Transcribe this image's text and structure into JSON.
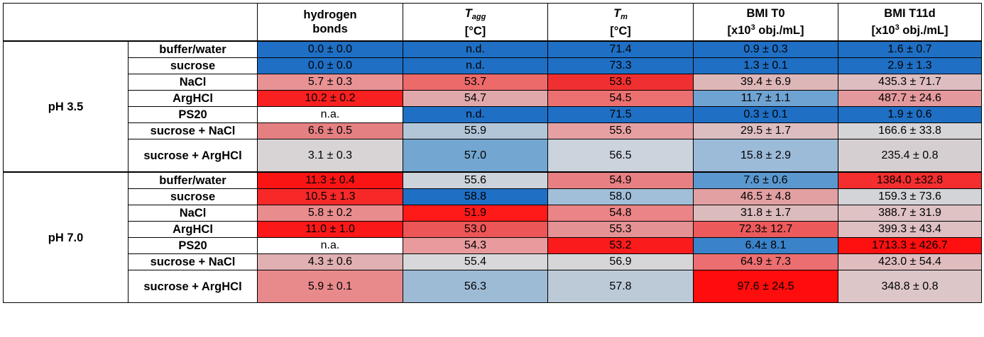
{
  "header": {
    "hb_line1": "hydrogen",
    "hb_line2": "bonds",
    "tagg_main": "T",
    "tagg_sub": "agg",
    "tagg_unit": "[°C]",
    "tm_main": "T",
    "tm_sub": "m",
    "tm_unit": "[°C]",
    "t0_line1": "BMI T0",
    "t0_pre": "[x10",
    "t0_sup": "3",
    "t0_post": " obj./mL]",
    "t11_line1": "BMI T11d",
    "t11_pre": "[x10",
    "t11_sup": "3",
    "t11_post": " obj./mL]"
  },
  "groups": [
    {
      "label": "pH 3.5",
      "rows": [
        {
          "solution": "buffer/water",
          "cells": [
            {
              "text": "0.0 ± 0.0",
              "bg": "#1f6fc4"
            },
            {
              "text": "n.d.",
              "bg": "#1f6fc4"
            },
            {
              "text": "71.4",
              "bg": "#1f6fc4"
            },
            {
              "text": "0.9 ± 0.3",
              "bg": "#1f6fc4"
            },
            {
              "text": "1.6 ± 0.7",
              "bg": "#1f6fc4"
            }
          ]
        },
        {
          "solution": "sucrose",
          "cells": [
            {
              "text": "0.0 ± 0.0",
              "bg": "#1f6fc4"
            },
            {
              "text": "n.d.",
              "bg": "#1f6fc4"
            },
            {
              "text": "73.3",
              "bg": "#1f6fc4"
            },
            {
              "text": "1.3 ± 0.1",
              "bg": "#1f6fc4"
            },
            {
              "text": "2.9 ± 1.3",
              "bg": "#1f6fc4"
            }
          ]
        },
        {
          "solution": "NaCl",
          "cells": [
            {
              "text": "5.7 ± 0.3",
              "bg": "#e89294"
            },
            {
              "text": "53.7",
              "bg": "#ec6a6a"
            },
            {
              "text": "53.6",
              "bg": "#f03030"
            },
            {
              "text": "39.4 ± 6.9",
              "bg": "#ddb6b8"
            },
            {
              "text": "435.3 ± 71.7",
              "bg": "#ddbdbf"
            }
          ]
        },
        {
          "solution": "ArgHCl",
          "cells": [
            {
              "text": "10.2 ± 0.2",
              "bg": "#f82020"
            },
            {
              "text": "54.7",
              "bg": "#e0a8aa"
            },
            {
              "text": "54.5",
              "bg": "#ec7070"
            },
            {
              "text": "11.7 ± 1.1",
              "bg": "#6fa3d2"
            },
            {
              "text": "487.7 ± 24.6",
              "bg": "#e49a9c"
            }
          ]
        },
        {
          "solution": "PS20",
          "cells": [
            {
              "text": "n.a.",
              "bg": "#ffffff"
            },
            {
              "text": "n.d.",
              "bg": "#1f6fc4"
            },
            {
              "text": "71.5",
              "bg": "#1f6fc4"
            },
            {
              "text": "0.3 ± 0.1",
              "bg": "#1f6fc4"
            },
            {
              "text": "1.9 ± 0.6",
              "bg": "#1f6fc4"
            }
          ]
        },
        {
          "solution": "sucrose + NaCl",
          "cells": [
            {
              "text": "6.6 ± 0.5",
              "bg": "#e58082"
            },
            {
              "text": "55.9",
              "bg": "#b3c6d8"
            },
            {
              "text": "55.6",
              "bg": "#e7a0a2"
            },
            {
              "text": "29.5 ± 1.7",
              "bg": "#ddbec0"
            },
            {
              "text": "166.6 ± 33.8",
              "bg": "#d5d5d8"
            }
          ]
        },
        {
          "solution": "sucrose + ArgHCl",
          "tall": true,
          "cells": [
            {
              "text": "3.1 ± 0.3",
              "bg": "#d8d4d6"
            },
            {
              "text": "57.0",
              "bg": "#73a6d0"
            },
            {
              "text": "56.5",
              "bg": "#cbd3dd"
            },
            {
              "text": "15.8 ± 2.9",
              "bg": "#9bbbd8"
            },
            {
              "text": "235.4 ± 0.8",
              "bg": "#d6cfd2"
            }
          ]
        }
      ]
    },
    {
      "label": "pH 7.0",
      "rows": [
        {
          "solution": "buffer/water",
          "cells": [
            {
              "text": "11.3 ± 0.4",
              "bg": "#fa1414"
            },
            {
              "text": "55.6",
              "bg": "#cdd3db"
            },
            {
              "text": "54.9",
              "bg": "#e88083"
            },
            {
              "text": "7.6 ± 0.6",
              "bg": "#5b98cf"
            },
            {
              "text": "1384.0 ±32.8",
              "bg": "#f42e2e"
            }
          ]
        },
        {
          "solution": "sucrose",
          "cells": [
            {
              "text": "10.5 ± 1.3",
              "bg": "#f62828"
            },
            {
              "text": "58.8",
              "bg": "#1f6fc4"
            },
            {
              "text": "58.0",
              "bg": "#a2bfd9"
            },
            {
              "text": "46.5 ± 4.8",
              "bg": "#e3a0a2"
            },
            {
              "text": "159.3 ± 73.6",
              "bg": "#d3d4d8"
            }
          ]
        },
        {
          "solution": "NaCl",
          "cells": [
            {
              "text": "5.8 ± 0.2",
              "bg": "#e88c8e"
            },
            {
              "text": "51.9",
              "bg": "#ff1a1a"
            },
            {
              "text": "54.8",
              "bg": "#ea8486"
            },
            {
              "text": "31.8 ± 1.7",
              "bg": "#dcbbbd"
            },
            {
              "text": "388.7 ± 31.9",
              "bg": "#dec2c4"
            }
          ]
        },
        {
          "solution": "ArgHCl",
          "cells": [
            {
              "text": "11.0 ± 1.0",
              "bg": "#fa1818"
            },
            {
              "text": "53.0",
              "bg": "#ec5656"
            },
            {
              "text": "55.3",
              "bg": "#e59294"
            },
            {
              "text": "72.3± 12.7",
              "bg": "#ec5a5c"
            },
            {
              "text": "399.3 ± 43.4",
              "bg": "#dec0c2"
            }
          ]
        },
        {
          "solution": "PS20",
          "cells": [
            {
              "text": "n.a.",
              "bg": "#ffffff"
            },
            {
              "text": "54.3",
              "bg": "#e89a9c"
            },
            {
              "text": "53.2",
              "bg": "#fa1c1c"
            },
            {
              "text": "6.4± 8.1",
              "bg": "#3a82c9"
            },
            {
              "text": "1713.3 ± 426.7",
              "bg": "#ff1010"
            }
          ]
        },
        {
          "solution": "sucrose + NaCl",
          "cells": [
            {
              "text": "4.3 ± 0.6",
              "bg": "#e0b0b2"
            },
            {
              "text": "55.4",
              "bg": "#d8d8da"
            },
            {
              "text": "56.9",
              "bg": "#d6d6d8"
            },
            {
              "text": "64.9 ± 7.3",
              "bg": "#ec6e70"
            },
            {
              "text": "423.0 ± 54.4",
              "bg": "#dfbdbf"
            }
          ]
        },
        {
          "solution": "sucrose + ArgHCl",
          "tall": true,
          "cells": [
            {
              "text": "5.9 ± 0.1",
              "bg": "#e88a8c"
            },
            {
              "text": "56.3",
              "bg": "#9ebbd6"
            },
            {
              "text": "57.8",
              "bg": "#bccad8"
            },
            {
              "text": "97.6 ± 24.5",
              "bg": "#ff0c0c"
            },
            {
              "text": "348.8 ± 0.8",
              "bg": "#dcc6c8"
            }
          ]
        }
      ]
    }
  ]
}
